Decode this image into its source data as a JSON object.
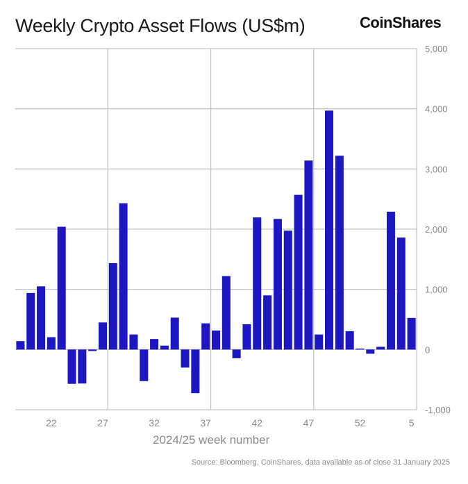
{
  "chart_data": {
    "type": "bar",
    "title": "Weekly Crypto Asset Flows (US$m)",
    "xlabel": "2024/25 week number",
    "ylabel": "",
    "source": "Source: Bloomberg, CoinShares, data available as of close 31 January 2025",
    "logo": "CoinShares",
    "categories": [
      "19",
      "20",
      "21",
      "22",
      "23",
      "24",
      "25",
      "26",
      "27",
      "28",
      "29",
      "30",
      "31",
      "32",
      "33",
      "34",
      "35",
      "36",
      "37",
      "38",
      "39",
      "40",
      "41",
      "42",
      "43",
      "44",
      "45",
      "46",
      "47",
      "48",
      "49",
      "50",
      "51",
      "52",
      "1",
      "2",
      "3",
      "4",
      "5"
    ],
    "values": [
      140,
      940,
      1050,
      205,
      2040,
      -570,
      -565,
      -25,
      450,
      1435,
      2430,
      250,
      -525,
      175,
      65,
      530,
      -300,
      -725,
      435,
      315,
      1220,
      -145,
      420,
      2195,
      900,
      2170,
      1975,
      2570,
      3140,
      250,
      3970,
      3220,
      305,
      15,
      -70,
      45,
      2290,
      1860,
      525
    ],
    "x_tick_labels": [
      "22",
      "27",
      "32",
      "37",
      "42",
      "47",
      "52",
      "5"
    ],
    "y_ticks": [
      -1000,
      0,
      1000,
      2000,
      3000,
      4000,
      5000
    ],
    "y_tick_labels": [
      "-1,000",
      "0",
      "1,000",
      "2,000",
      "3,000",
      "4,000",
      "5,000"
    ],
    "ylim": [
      -1000,
      5000
    ],
    "grid": true,
    "y_axis_side": "right",
    "bar_color": "#1c17c0"
  }
}
